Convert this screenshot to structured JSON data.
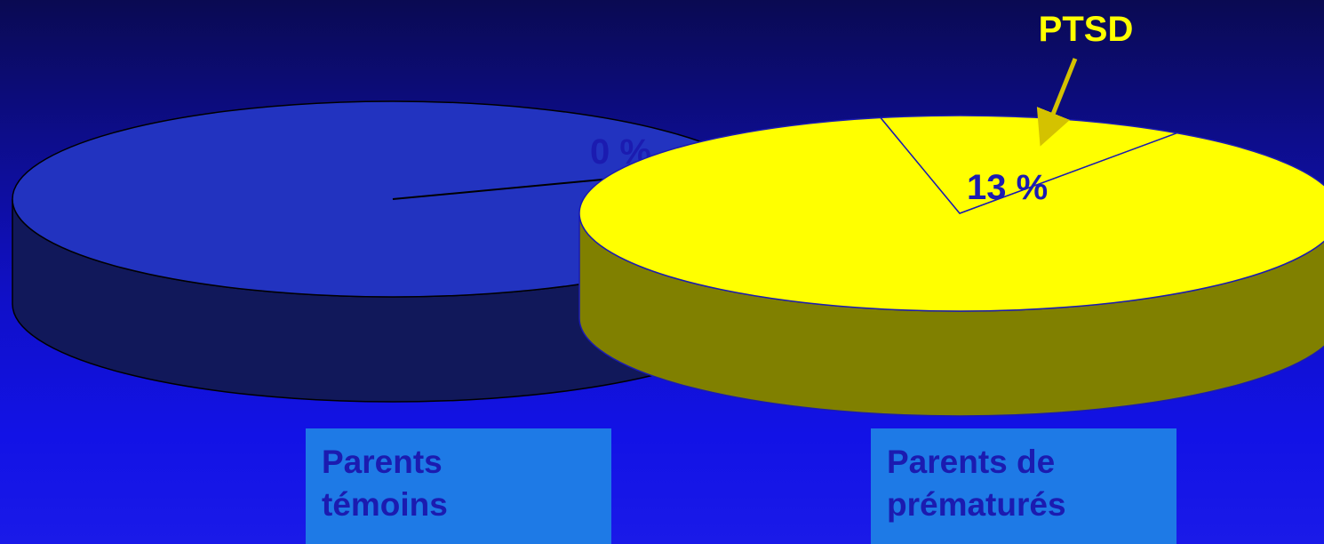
{
  "chart_data": {
    "type": "pie",
    "pies": [
      {
        "name": "Parents témoins",
        "slices": [
          {
            "label": "PTSD",
            "value": 0,
            "display": "0 %"
          },
          {
            "label": "",
            "value": 100
          }
        ],
        "caption_lines": [
          "Parents",
          "témoins"
        ]
      },
      {
        "name": "Parents de prématurés",
        "slices": [
          {
            "label": "PTSD",
            "value": 13,
            "display": "13 %"
          },
          {
            "label": "",
            "value": 87
          }
        ],
        "caption_lines": [
          "Parents de",
          "prématurés"
        ]
      }
    ],
    "annotation": "PTSD"
  },
  "colors": {
    "pie1_top": "#2233c0",
    "pie1_side": "#11185a",
    "pie2_top": "#ffff00",
    "pie2_side": "#808000",
    "caption_bg": "#1e7ae6",
    "label_text": "#1b1bb0",
    "annotation_text": "#ffff00"
  }
}
